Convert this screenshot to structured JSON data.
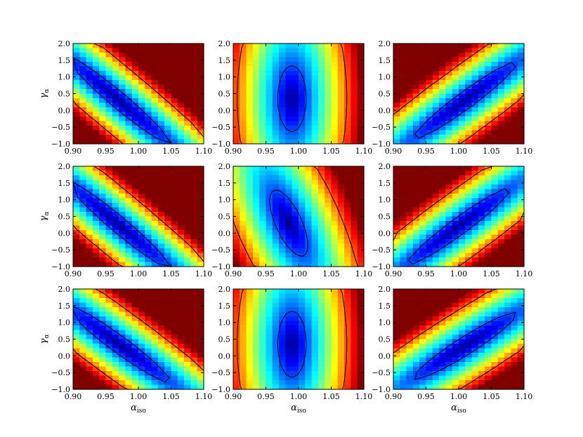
{
  "chart_data": {
    "type": "heatmap",
    "layout": "3x3 grid",
    "xlabel": "α_iso",
    "ylabel": "γ_α",
    "x_ticks": [
      "0.90",
      "0.95",
      "1.00",
      "1.05",
      "1.10"
    ],
    "y_ticks": [
      "2.0",
      "1.5",
      "1.0",
      "0.5",
      "0.0",
      "−0.5",
      "−1.0"
    ],
    "xlim": [
      0.9,
      1.1
    ],
    "ylim": [
      -1.0,
      2.0
    ],
    "grid": false,
    "colormap": "jet",
    "colors": {
      "low": "#00007f",
      "high": "#7f0000",
      "contour": "#000000",
      "frame": "#000000"
    },
    "panels": [
      {
        "row": 0,
        "col": 0,
        "shape": "anticorrelated",
        "center_x": 0.97,
        "center_y": 0.3,
        "slope": -16
      },
      {
        "row": 0,
        "col": 1,
        "shape": "vertical-band",
        "center_x": 0.99,
        "center_y": 0.35,
        "slope": 0
      },
      {
        "row": 0,
        "col": 2,
        "shape": "correlated",
        "center_x": 1.01,
        "center_y": 0.3,
        "slope": 14
      },
      {
        "row": 1,
        "col": 0,
        "shape": "anticorrelated",
        "center_x": 0.97,
        "center_y": 0.25,
        "slope": -16
      },
      {
        "row": 1,
        "col": 1,
        "shape": "vertical-band",
        "center_x": 0.985,
        "center_y": 0.3,
        "slope": -2
      },
      {
        "row": 1,
        "col": 2,
        "shape": "correlated",
        "center_x": 1.0,
        "center_y": 0.2,
        "slope": 14
      },
      {
        "row": 2,
        "col": 0,
        "shape": "anticorrelated",
        "center_x": 0.97,
        "center_y": 0.35,
        "slope": -14
      },
      {
        "row": 2,
        "col": 1,
        "shape": "vertical-band",
        "center_x": 0.99,
        "center_y": 0.35,
        "slope": 0
      },
      {
        "row": 2,
        "col": 2,
        "shape": "correlated",
        "center_x": 1.01,
        "center_y": 0.3,
        "slope": 12
      }
    ]
  }
}
